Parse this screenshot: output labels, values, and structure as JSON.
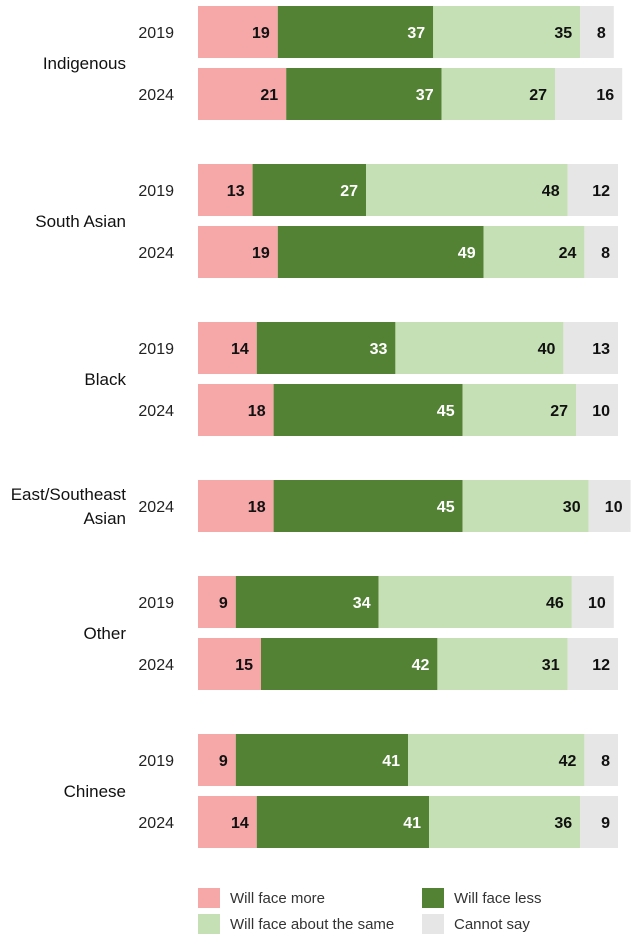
{
  "chart_data": {
    "type": "bar",
    "orientation": "horizontal",
    "stacked": true,
    "xlim": [
      0,
      100
    ],
    "grid": false,
    "legend_position": "bottom",
    "series_names": [
      "Will face more",
      "Will face less",
      "Will face about the same",
      "Cannot say"
    ],
    "colors": [
      "#f6a8a8",
      "#548235",
      "#c5e0b4",
      "#e7e6e6"
    ],
    "label_colors": [
      "#111111",
      "#ffffff",
      "#111111",
      "#111111"
    ],
    "groups": [
      {
        "name": "Indigenous",
        "rows": [
          {
            "year": "2019",
            "values": [
              19,
              37,
              35,
              8
            ]
          },
          {
            "year": "2024",
            "values": [
              21,
              37,
              27,
              16
            ]
          }
        ]
      },
      {
        "name": "South Asian",
        "rows": [
          {
            "year": "2019",
            "values": [
              13,
              27,
              48,
              12
            ]
          },
          {
            "year": "2024",
            "values": [
              19,
              49,
              24,
              8
            ]
          }
        ]
      },
      {
        "name": "Black",
        "rows": [
          {
            "year": "2019",
            "values": [
              14,
              33,
              40,
              13
            ]
          },
          {
            "year": "2024",
            "values": [
              18,
              45,
              27,
              10
            ]
          }
        ]
      },
      {
        "name": "East/Southeast Asian",
        "name_lines": [
          "East/Southeast",
          "Asian"
        ],
        "rows": [
          {
            "year": "2024",
            "values": [
              18,
              45,
              30,
              10
            ]
          }
        ]
      },
      {
        "name": "Other",
        "rows": [
          {
            "year": "2019",
            "values": [
              9,
              34,
              46,
              10
            ]
          },
          {
            "year": "2024",
            "values": [
              15,
              42,
              31,
              12
            ]
          }
        ]
      },
      {
        "name": "Chinese",
        "rows": [
          {
            "year": "2019",
            "values": [
              9,
              41,
              42,
              8
            ]
          },
          {
            "year": "2024",
            "values": [
              14,
              41,
              36,
              9
            ]
          }
        ]
      }
    ]
  },
  "legend": {
    "items": [
      {
        "label": "Will face more",
        "color": "#f6a8a8"
      },
      {
        "label": "Will face less",
        "color": "#548235"
      },
      {
        "label": "Will face about the same",
        "color": "#c5e0b4"
      },
      {
        "label": "Cannot say",
        "color": "#e7e6e6"
      }
    ]
  }
}
